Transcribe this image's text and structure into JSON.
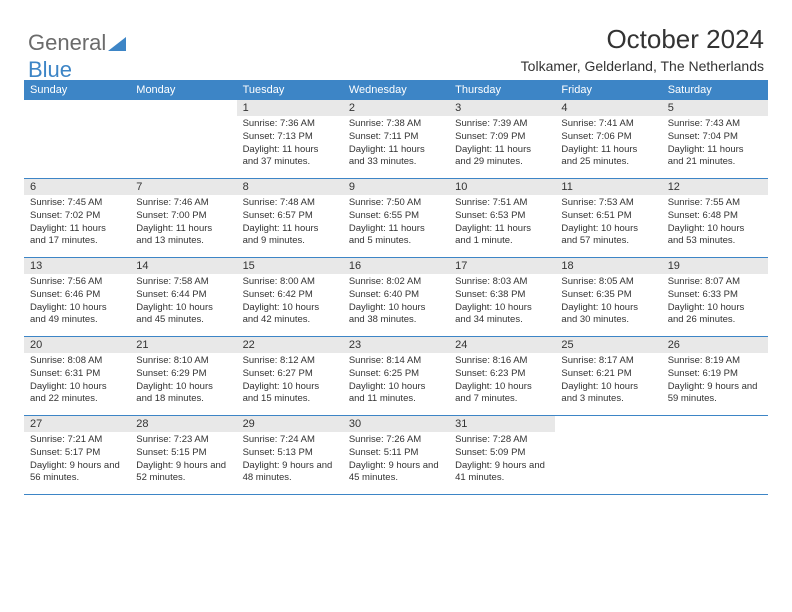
{
  "logo": {
    "text_gray": "General",
    "text_blue": "Blue"
  },
  "title": "October 2024",
  "location": "Tolkamer, Gelderland, The Netherlands",
  "colors": {
    "header_bg": "#3d85c6",
    "daynum_bg": "#e8e8e8",
    "text": "#333333",
    "logo_gray": "#6b6b6b",
    "logo_blue": "#3d85c6"
  },
  "weekdays": [
    "Sunday",
    "Monday",
    "Tuesday",
    "Wednesday",
    "Thursday",
    "Friday",
    "Saturday"
  ],
  "weeks": [
    [
      {
        "n": "",
        "sr": "",
        "ss": "",
        "dl": ""
      },
      {
        "n": "",
        "sr": "",
        "ss": "",
        "dl": ""
      },
      {
        "n": "1",
        "sr": "Sunrise: 7:36 AM",
        "ss": "Sunset: 7:13 PM",
        "dl": "Daylight: 11 hours and 37 minutes."
      },
      {
        "n": "2",
        "sr": "Sunrise: 7:38 AM",
        "ss": "Sunset: 7:11 PM",
        "dl": "Daylight: 11 hours and 33 minutes."
      },
      {
        "n": "3",
        "sr": "Sunrise: 7:39 AM",
        "ss": "Sunset: 7:09 PM",
        "dl": "Daylight: 11 hours and 29 minutes."
      },
      {
        "n": "4",
        "sr": "Sunrise: 7:41 AM",
        "ss": "Sunset: 7:06 PM",
        "dl": "Daylight: 11 hours and 25 minutes."
      },
      {
        "n": "5",
        "sr": "Sunrise: 7:43 AM",
        "ss": "Sunset: 7:04 PM",
        "dl": "Daylight: 11 hours and 21 minutes."
      }
    ],
    [
      {
        "n": "6",
        "sr": "Sunrise: 7:45 AM",
        "ss": "Sunset: 7:02 PM",
        "dl": "Daylight: 11 hours and 17 minutes."
      },
      {
        "n": "7",
        "sr": "Sunrise: 7:46 AM",
        "ss": "Sunset: 7:00 PM",
        "dl": "Daylight: 11 hours and 13 minutes."
      },
      {
        "n": "8",
        "sr": "Sunrise: 7:48 AM",
        "ss": "Sunset: 6:57 PM",
        "dl": "Daylight: 11 hours and 9 minutes."
      },
      {
        "n": "9",
        "sr": "Sunrise: 7:50 AM",
        "ss": "Sunset: 6:55 PM",
        "dl": "Daylight: 11 hours and 5 minutes."
      },
      {
        "n": "10",
        "sr": "Sunrise: 7:51 AM",
        "ss": "Sunset: 6:53 PM",
        "dl": "Daylight: 11 hours and 1 minute."
      },
      {
        "n": "11",
        "sr": "Sunrise: 7:53 AM",
        "ss": "Sunset: 6:51 PM",
        "dl": "Daylight: 10 hours and 57 minutes."
      },
      {
        "n": "12",
        "sr": "Sunrise: 7:55 AM",
        "ss": "Sunset: 6:48 PM",
        "dl": "Daylight: 10 hours and 53 minutes."
      }
    ],
    [
      {
        "n": "13",
        "sr": "Sunrise: 7:56 AM",
        "ss": "Sunset: 6:46 PM",
        "dl": "Daylight: 10 hours and 49 minutes."
      },
      {
        "n": "14",
        "sr": "Sunrise: 7:58 AM",
        "ss": "Sunset: 6:44 PM",
        "dl": "Daylight: 10 hours and 45 minutes."
      },
      {
        "n": "15",
        "sr": "Sunrise: 8:00 AM",
        "ss": "Sunset: 6:42 PM",
        "dl": "Daylight: 10 hours and 42 minutes."
      },
      {
        "n": "16",
        "sr": "Sunrise: 8:02 AM",
        "ss": "Sunset: 6:40 PM",
        "dl": "Daylight: 10 hours and 38 minutes."
      },
      {
        "n": "17",
        "sr": "Sunrise: 8:03 AM",
        "ss": "Sunset: 6:38 PM",
        "dl": "Daylight: 10 hours and 34 minutes."
      },
      {
        "n": "18",
        "sr": "Sunrise: 8:05 AM",
        "ss": "Sunset: 6:35 PM",
        "dl": "Daylight: 10 hours and 30 minutes."
      },
      {
        "n": "19",
        "sr": "Sunrise: 8:07 AM",
        "ss": "Sunset: 6:33 PM",
        "dl": "Daylight: 10 hours and 26 minutes."
      }
    ],
    [
      {
        "n": "20",
        "sr": "Sunrise: 8:08 AM",
        "ss": "Sunset: 6:31 PM",
        "dl": "Daylight: 10 hours and 22 minutes."
      },
      {
        "n": "21",
        "sr": "Sunrise: 8:10 AM",
        "ss": "Sunset: 6:29 PM",
        "dl": "Daylight: 10 hours and 18 minutes."
      },
      {
        "n": "22",
        "sr": "Sunrise: 8:12 AM",
        "ss": "Sunset: 6:27 PM",
        "dl": "Daylight: 10 hours and 15 minutes."
      },
      {
        "n": "23",
        "sr": "Sunrise: 8:14 AM",
        "ss": "Sunset: 6:25 PM",
        "dl": "Daylight: 10 hours and 11 minutes."
      },
      {
        "n": "24",
        "sr": "Sunrise: 8:16 AM",
        "ss": "Sunset: 6:23 PM",
        "dl": "Daylight: 10 hours and 7 minutes."
      },
      {
        "n": "25",
        "sr": "Sunrise: 8:17 AM",
        "ss": "Sunset: 6:21 PM",
        "dl": "Daylight: 10 hours and 3 minutes."
      },
      {
        "n": "26",
        "sr": "Sunrise: 8:19 AM",
        "ss": "Sunset: 6:19 PM",
        "dl": "Daylight: 9 hours and 59 minutes."
      }
    ],
    [
      {
        "n": "27",
        "sr": "Sunrise: 7:21 AM",
        "ss": "Sunset: 5:17 PM",
        "dl": "Daylight: 9 hours and 56 minutes."
      },
      {
        "n": "28",
        "sr": "Sunrise: 7:23 AM",
        "ss": "Sunset: 5:15 PM",
        "dl": "Daylight: 9 hours and 52 minutes."
      },
      {
        "n": "29",
        "sr": "Sunrise: 7:24 AM",
        "ss": "Sunset: 5:13 PM",
        "dl": "Daylight: 9 hours and 48 minutes."
      },
      {
        "n": "30",
        "sr": "Sunrise: 7:26 AM",
        "ss": "Sunset: 5:11 PM",
        "dl": "Daylight: 9 hours and 45 minutes."
      },
      {
        "n": "31",
        "sr": "Sunrise: 7:28 AM",
        "ss": "Sunset: 5:09 PM",
        "dl": "Daylight: 9 hours and 41 minutes."
      },
      {
        "n": "",
        "sr": "",
        "ss": "",
        "dl": ""
      },
      {
        "n": "",
        "sr": "",
        "ss": "",
        "dl": ""
      }
    ]
  ]
}
